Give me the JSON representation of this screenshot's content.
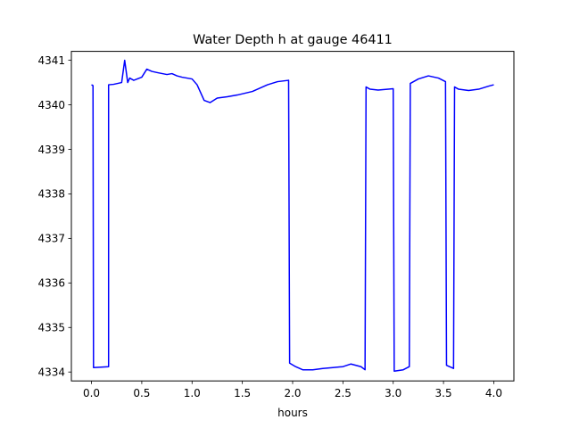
{
  "chart_data": {
    "type": "line",
    "title": "Water Depth h at gauge 46411",
    "xlabel": "hours",
    "ylabel": "",
    "xlim": [
      -0.2,
      4.2
    ],
    "ylim": [
      4333.8,
      4341.2
    ],
    "xticks": [
      0.0,
      0.5,
      1.0,
      1.5,
      2.0,
      2.5,
      3.0,
      3.5,
      4.0
    ],
    "xtick_labels": [
      "0.0",
      "0.5",
      "1.0",
      "1.5",
      "2.0",
      "2.5",
      "3.0",
      "3.5",
      "4.0"
    ],
    "yticks": [
      4334,
      4335,
      4336,
      4337,
      4338,
      4339,
      4340,
      4341
    ],
    "ytick_labels": [
      "4334",
      "4335",
      "4336",
      "4337",
      "4338",
      "4339",
      "4340",
      "4341"
    ],
    "grid": false,
    "series": [
      {
        "color": "#0000ff",
        "x": [
          0.0,
          0.015,
          0.02,
          0.17,
          0.17,
          0.22,
          0.3,
          0.33,
          0.36,
          0.38,
          0.42,
          0.5,
          0.55,
          0.6,
          0.66,
          0.75,
          0.8,
          0.85,
          0.9,
          1.0,
          1.05,
          1.12,
          1.18,
          1.25,
          1.35,
          1.45,
          1.6,
          1.75,
          1.85,
          1.96,
          1.97,
          2.03,
          2.1,
          2.2,
          2.3,
          2.4,
          2.5,
          2.58,
          2.68,
          2.72,
          2.73,
          2.77,
          2.85,
          3.0,
          3.01,
          3.1,
          3.16,
          3.17,
          3.25,
          3.35,
          3.45,
          3.52,
          3.53,
          3.6,
          3.61,
          3.65,
          3.75,
          3.85,
          3.95,
          4.0
        ],
        "y": [
          4340.45,
          4340.43,
          4334.1,
          4334.12,
          4340.45,
          4340.46,
          4340.5,
          4341.0,
          4340.5,
          4340.6,
          4340.55,
          4340.62,
          4340.8,
          4340.75,
          4340.72,
          4340.68,
          4340.7,
          4340.65,
          4340.62,
          4340.58,
          4340.45,
          4340.1,
          4340.05,
          4340.15,
          4340.18,
          4340.22,
          4340.3,
          4340.45,
          4340.52,
          4340.55,
          4334.2,
          4334.12,
          4334.05,
          4334.05,
          4334.08,
          4334.1,
          4334.12,
          4334.18,
          4334.12,
          4334.05,
          4340.4,
          4340.35,
          4340.33,
          4340.36,
          4334.02,
          4334.05,
          4334.12,
          4340.48,
          4340.58,
          4340.65,
          4340.6,
          4340.52,
          4334.15,
          4334.08,
          4340.4,
          4340.35,
          4340.32,
          4340.35,
          4340.42,
          4340.45
        ]
      }
    ]
  }
}
